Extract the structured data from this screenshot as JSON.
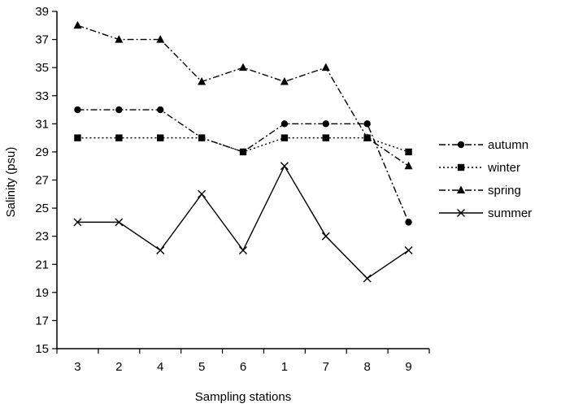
{
  "chart_data": {
    "type": "line",
    "xlabel": "Sampling stations",
    "ylabel": "Salinity (psu)",
    "categories": [
      "3",
      "2",
      "4",
      "5",
      "6",
      "1",
      "7",
      "8",
      "9"
    ],
    "ylim": [
      15,
      39
    ],
    "yticks": [
      15,
      17,
      19,
      21,
      23,
      25,
      27,
      29,
      31,
      33,
      35,
      37,
      39
    ],
    "grid": false,
    "legend_position": "right",
    "series": [
      {
        "name": "autumn",
        "marker": "circle",
        "dash": "dash-dot",
        "values": [
          32,
          32,
          32,
          30,
          29,
          31,
          31,
          31,
          24
        ]
      },
      {
        "name": "winter",
        "marker": "square",
        "dash": "dotted",
        "values": [
          30,
          30,
          30,
          30,
          29,
          30,
          30,
          30,
          29
        ]
      },
      {
        "name": "spring",
        "marker": "triangle",
        "dash": "dash-dot",
        "values": [
          38,
          37,
          37,
          34,
          35,
          34,
          35,
          30,
          28
        ]
      },
      {
        "name": "summer",
        "marker": "x",
        "dash": "solid",
        "values": [
          24,
          24,
          22,
          26,
          22,
          28,
          23,
          20,
          22
        ]
      }
    ]
  }
}
